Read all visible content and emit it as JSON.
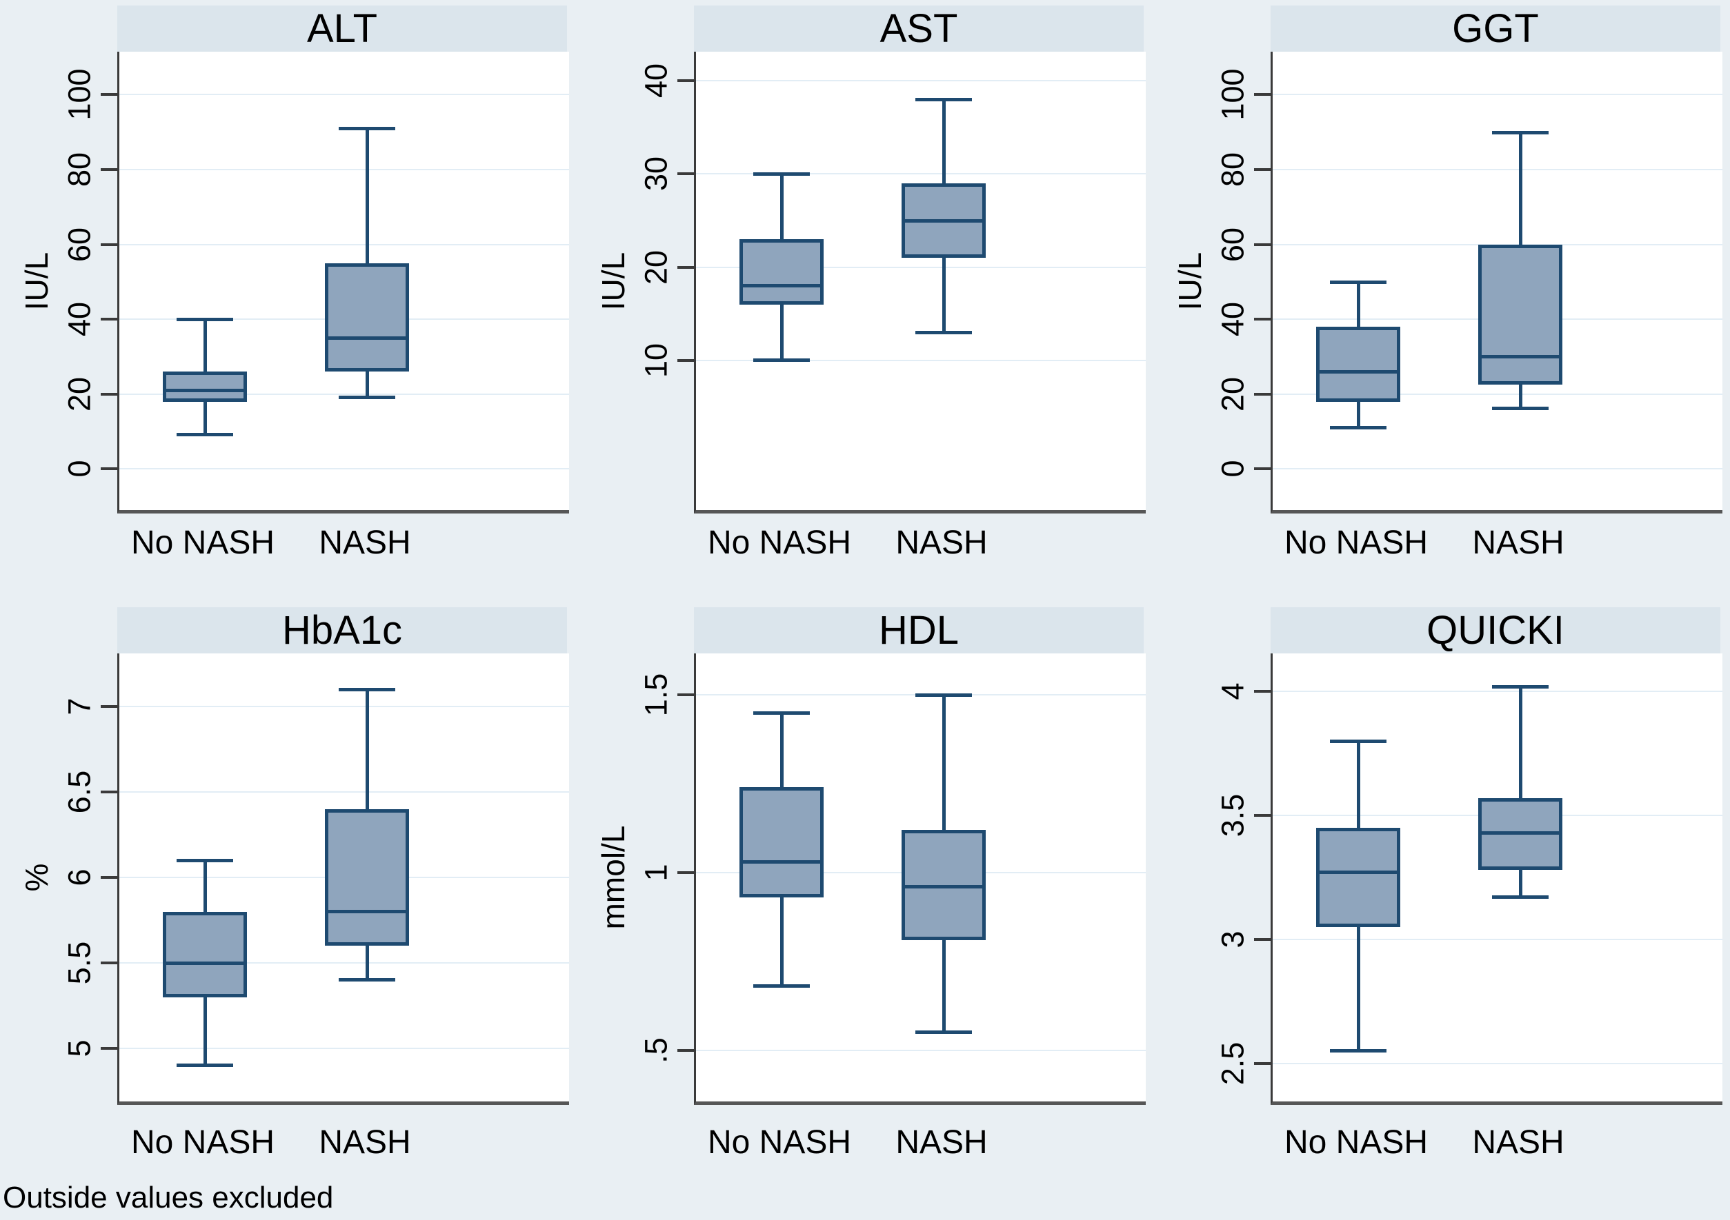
{
  "note": "Outside values excluded",
  "groups": [
    "No NASH",
    "NASH"
  ],
  "colors": {
    "page_background": "#e9eff3",
    "title_strip": "#dbe5ec",
    "plot_background": "#ffffff",
    "gridline": "#e2edf5",
    "axis_line": "#3a3a3a",
    "bottom_axis_line": "#565656",
    "box_fill": "#8fa5bd",
    "box_border": "#1e4a70",
    "text": "#000000"
  },
  "chart_data": {
    "type": "box",
    "layout": "2 rows x 3 columns of panels, grid on, whisker caps, Stata style",
    "categories": [
      "No NASH",
      "NASH"
    ],
    "note": "Outside values excluded",
    "panels": [
      {
        "title": "ALT",
        "ylabel": "IU/L",
        "ticks": [
          {
            "v": 0,
            "label": "0"
          },
          {
            "v": 20,
            "label": "20"
          },
          {
            "v": 40,
            "label": "40"
          },
          {
            "v": 60,
            "label": "60"
          },
          {
            "v": 80,
            "label": "80"
          },
          {
            "v": 100,
            "label": "100"
          }
        ],
        "ylim": [
          -11,
          111.5
        ],
        "boxes": [
          {
            "group": "No NASH",
            "whisker_low": 9,
            "q1": 18,
            "median": 21,
            "q3": 26,
            "whisker_high": 40
          },
          {
            "group": "NASH",
            "whisker_low": 19,
            "q1": 26,
            "median": 35,
            "q3": 55,
            "whisker_high": 91
          }
        ]
      },
      {
        "title": "AST",
        "ylabel": "IU/L",
        "ticks": [
          {
            "v": 10,
            "label": "10"
          },
          {
            "v": 20,
            "label": "20"
          },
          {
            "v": 30,
            "label": "30"
          },
          {
            "v": 40,
            "label": "40"
          }
        ],
        "ylim": [
          -6,
          43.1
        ],
        "boxes": [
          {
            "group": "No NASH",
            "whisker_low": 10,
            "q1": 16,
            "median": 18,
            "q3": 23,
            "whisker_high": 30
          },
          {
            "group": "NASH",
            "whisker_low": 13,
            "q1": 21,
            "median": 25,
            "q3": 29,
            "whisker_high": 38
          }
        ]
      },
      {
        "title": "GGT",
        "ylabel": "IU/L",
        "ticks": [
          {
            "v": 0,
            "label": "0"
          },
          {
            "v": 20,
            "label": "20"
          },
          {
            "v": 40,
            "label": "40"
          },
          {
            "v": 60,
            "label": "60"
          },
          {
            "v": 80,
            "label": "80"
          },
          {
            "v": 100,
            "label": "100"
          }
        ],
        "ylim": [
          -11,
          111.5
        ],
        "boxes": [
          {
            "group": "No NASH",
            "whisker_low": 11,
            "q1": 18,
            "median": 26,
            "q3": 38,
            "whisker_high": 50
          },
          {
            "group": "NASH",
            "whisker_low": 16,
            "q1": 22.5,
            "median": 30,
            "q3": 60,
            "whisker_high": 90
          }
        ]
      },
      {
        "title": "HbA1c",
        "ylabel": "%",
        "ticks": [
          {
            "v": 5,
            "label": "5"
          },
          {
            "v": 5.5,
            "label": "5.5"
          },
          {
            "v": 6,
            "label": "6"
          },
          {
            "v": 6.5,
            "label": "6.5"
          },
          {
            "v": 7,
            "label": "7"
          }
        ],
        "ylim": [
          4.69,
          7.31
        ],
        "boxes": [
          {
            "group": "No NASH",
            "whisker_low": 4.9,
            "q1": 5.3,
            "median": 5.5,
            "q3": 5.8,
            "whisker_high": 6.1
          },
          {
            "group": "NASH",
            "whisker_low": 5.4,
            "q1": 5.6,
            "median": 5.8,
            "q3": 6.4,
            "whisker_high": 7.1
          }
        ]
      },
      {
        "title": "HDL",
        "ylabel": "mmol/L",
        "ticks": [
          {
            "v": 0.5,
            "label": ".5"
          },
          {
            "v": 1,
            "label": "1"
          },
          {
            "v": 1.5,
            "label": "1.5"
          }
        ],
        "ylim": [
          0.357,
          1.616
        ],
        "boxes": [
          {
            "group": "No NASH",
            "whisker_low": 0.68,
            "q1": 0.93,
            "median": 1.03,
            "q3": 1.24,
            "whisker_high": 1.45
          },
          {
            "group": "NASH",
            "whisker_low": 0.55,
            "q1": 0.81,
            "median": 0.96,
            "q3": 1.12,
            "whisker_high": 1.5
          }
        ]
      },
      {
        "title": "QUICKI",
        "ylabel": "",
        "ticks": [
          {
            "v": 2.5,
            "label": "2.5"
          },
          {
            "v": 3,
            "label": "3"
          },
          {
            "v": 3.5,
            "label": "3.5"
          },
          {
            "v": 4,
            "label": "4"
          }
        ],
        "ylim": [
          2.347,
          4.153
        ],
        "boxes": [
          {
            "group": "No NASH",
            "whisker_low": 2.55,
            "q1": 3.05,
            "median": 3.27,
            "q3": 3.45,
            "whisker_high": 3.8
          },
          {
            "group": "NASH",
            "whisker_low": 3.17,
            "q1": 3.28,
            "median": 3.43,
            "q3": 3.57,
            "whisker_high": 4.02
          }
        ]
      }
    ]
  }
}
